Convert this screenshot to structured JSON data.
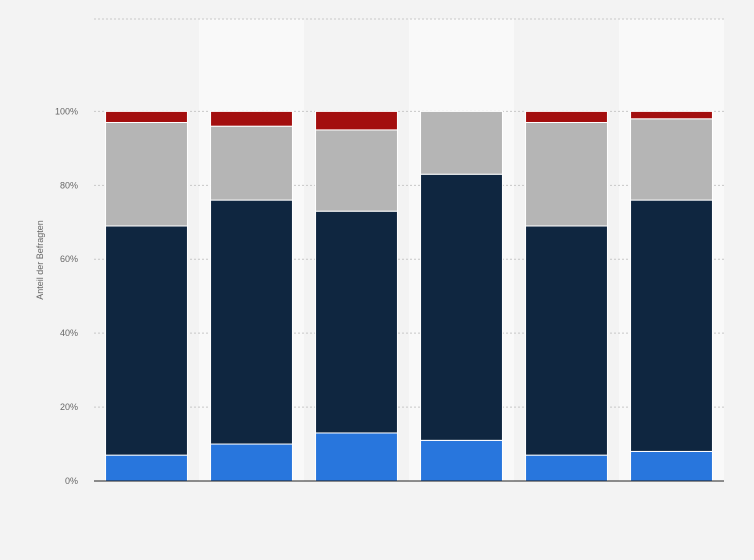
{
  "chart_data": {
    "type": "bar",
    "stacked": true,
    "categories": [
      "",
      "",
      "",
      "",
      "",
      ""
    ],
    "series": [
      {
        "color": "#2876dd",
        "values": [
          7,
          10,
          13,
          11,
          7,
          8
        ]
      },
      {
        "color": "#0f2640",
        "values": [
          62,
          66,
          60,
          72,
          62,
          68
        ]
      },
      {
        "color": "#b5b5b5",
        "values": [
          28,
          20,
          22,
          17,
          28,
          22
        ]
      },
      {
        "color": "#a30e0e",
        "values": [
          3,
          4,
          5,
          0,
          3,
          2
        ]
      }
    ],
    "ylabel": "Anteil der Befragten",
    "ylim": [
      0,
      125
    ],
    "yticks": [
      {
        "value": 0,
        "label": "0%"
      },
      {
        "value": 20,
        "label": "20%"
      },
      {
        "value": 40,
        "label": "40%"
      },
      {
        "value": 60,
        "label": "60%"
      },
      {
        "value": 80,
        "label": "80%"
      },
      {
        "value": 100,
        "label": "100%"
      }
    ],
    "grid": true,
    "legend": "none",
    "colors": {
      "background": "#f3f3f3",
      "band_light": "#f9f9f9",
      "grid": "#c8c8c8",
      "axis": "#222222",
      "text": "#666666"
    }
  }
}
